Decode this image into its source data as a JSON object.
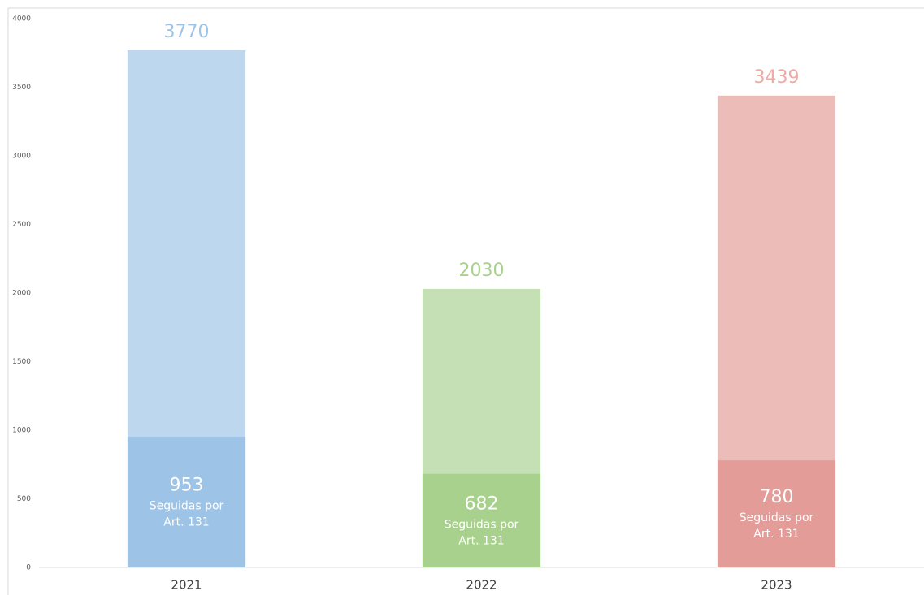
{
  "chart_data": {
    "type": "bar",
    "categories": [
      "2021",
      "2022",
      "2023"
    ],
    "values": [
      3770,
      2030,
      3439
    ],
    "inner_values": [
      953,
      682,
      780
    ],
    "inner_label": [
      "Seguidas por",
      "Art. 131"
    ],
    "colors": [
      "#bdd7ee",
      "#c5e0b4",
      "#ecbdb8"
    ],
    "inner_colors": [
      "#9dc3e6",
      "#a9d18e",
      "#e49c98"
    ],
    "label_colors": [
      "#9dc3e6",
      "#a9d18e",
      "#f0aaa4"
    ],
    "ylim": [
      0,
      4000
    ],
    "yticks": [
      0,
      500,
      1000,
      1500,
      2000,
      2500,
      3000,
      3500,
      4000
    ]
  }
}
